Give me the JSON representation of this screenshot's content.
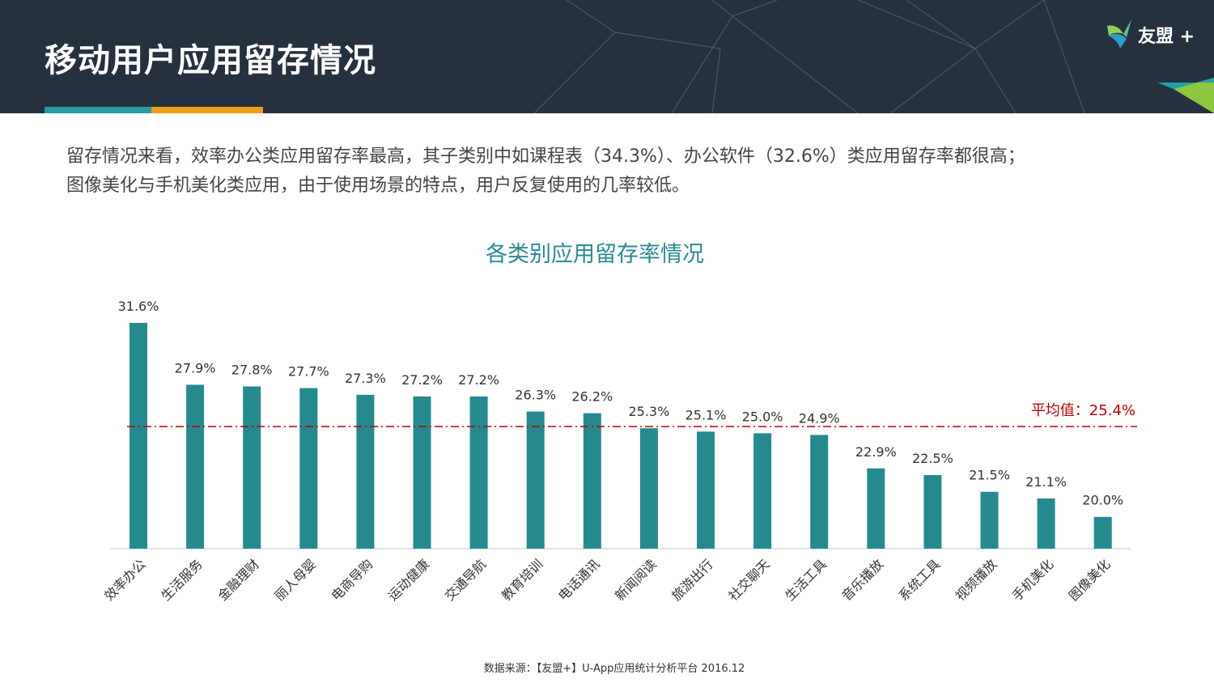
{
  "header": {
    "title": "移动用户应用留存情况",
    "logo_text": "友盟 +"
  },
  "description": {
    "line1": "留存情况来看，效率办公类应用留存率最高，其子类别中如课程表（34.3%）、办公软件（32.6%）类应用留存率都很高；",
    "line2": "图像美化与手机美化类应用，由于使用场景的特点，用户反复使用的几率较低。"
  },
  "chart_data": {
    "type": "bar",
    "title": "各类别应用留存率情况",
    "categories": [
      "效率办公",
      "生活服务",
      "金融理财",
      "丽人母婴",
      "电商导购",
      "运动健康",
      "交通导航",
      "教育培训",
      "电话通讯",
      "新闻阅读",
      "旅游出行",
      "社交聊天",
      "生活工具",
      "音乐播放",
      "系统工具",
      "视频播放",
      "手机美化",
      "图像美化"
    ],
    "values": [
      31.6,
      27.9,
      27.8,
      27.7,
      27.3,
      27.2,
      27.2,
      26.3,
      26.2,
      25.3,
      25.1,
      25.0,
      24.9,
      22.9,
      22.5,
      21.5,
      21.1,
      20.0
    ],
    "value_labels": [
      "31.6%",
      "27.9%",
      "27.8%",
      "27.7%",
      "27.3%",
      "27.2%",
      "27.2%",
      "26.3%",
      "26.2%",
      "25.3%",
      "25.1%",
      "25.0%",
      "24.9%",
      "22.9%",
      "22.5%",
      "21.5%",
      "21.1%",
      "20.0%"
    ],
    "average": 25.4,
    "average_label": "平均值：25.4%",
    "ylim": [
      18.1,
      31.6
    ],
    "xlabel": "",
    "ylabel": "",
    "bar_color": "#248a8f",
    "average_color": "#c00000"
  },
  "footer": {
    "source": "数据来源：【友盟+】U-App应用统计分析平台 2016.12"
  }
}
